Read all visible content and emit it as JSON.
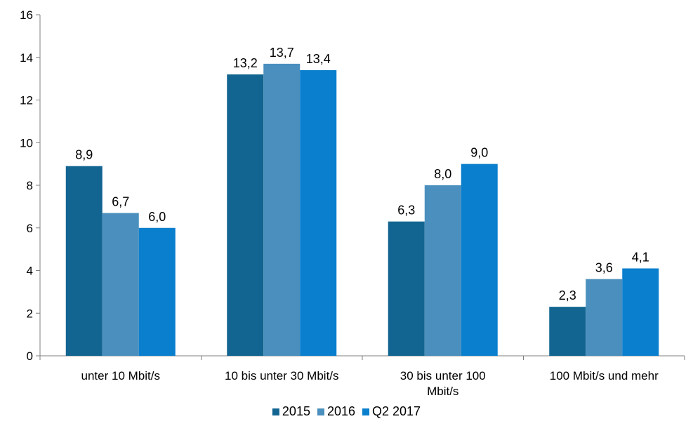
{
  "chart_data": {
    "type": "bar",
    "title": "",
    "xlabel": "",
    "ylabel": "",
    "ylim": [
      0,
      16
    ],
    "yticks": [
      0,
      2,
      4,
      6,
      8,
      10,
      12,
      14,
      16
    ],
    "categories": [
      [
        "unter 10 Mbit/s"
      ],
      [
        "10 bis unter 30 Mbit/s"
      ],
      [
        "30 bis unter 100",
        "Mbit/s"
      ],
      [
        "100 Mbit/s und mehr"
      ]
    ],
    "series": [
      {
        "name": "2015",
        "color": "#136591",
        "values": [
          8.9,
          13.2,
          6.3,
          2.3
        ],
        "labels": [
          "8,9",
          "13,2",
          "6,3",
          "2,3"
        ]
      },
      {
        "name": "2016",
        "color": "#4a8fbd",
        "values": [
          6.7,
          13.7,
          8.0,
          3.6
        ],
        "labels": [
          "6,7",
          "13,7",
          "8,0",
          "3,6"
        ]
      },
      {
        "name": "Q2 2017",
        "color": "#0a7fcd",
        "values": [
          6.0,
          13.4,
          9.0,
          4.1
        ],
        "labels": [
          "6,0",
          "13,4",
          "9,0",
          "4,1"
        ]
      }
    ],
    "grid": false,
    "legend_position": "bottom"
  }
}
